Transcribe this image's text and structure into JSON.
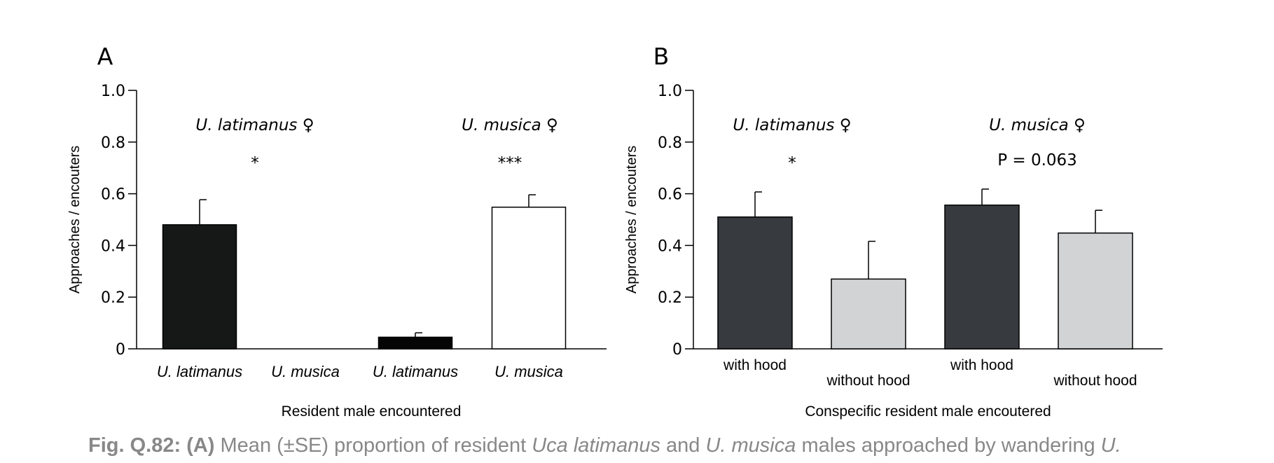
{
  "chart_data": [
    {
      "type": "bar",
      "panel_label": "A",
      "ylabel": "Approaches / encouters",
      "xlabel": "Resident male encountered",
      "ylim": [
        0,
        1.0
      ],
      "yticks": [
        "0",
        "0.2",
        "0.4",
        "0.6",
        "0.8",
        "1.0"
      ],
      "ytick_values": [
        0,
        0.2,
        0.4,
        0.6,
        0.8,
        1.0
      ],
      "categories": [
        "U. latimanus",
        "U. musica",
        "U. latimanus",
        "U. musica"
      ],
      "values": [
        0.48,
        0,
        0.045,
        0.548
      ],
      "se": [
        0.097,
        0,
        0.017,
        0.048
      ],
      "colors": [
        "#161818",
        "#ffffff",
        "#050505",
        "#ffffff"
      ],
      "groups": [
        {
          "label": "U. latimanus ♀",
          "annotation": "*"
        },
        {
          "label": "U. musica ♀",
          "annotation": "***"
        }
      ]
    },
    {
      "type": "bar",
      "panel_label": "B",
      "ylabel": "Approaches / encouters",
      "xlabel": "Conspecific resident male encoutered",
      "ylim": [
        0,
        1.0
      ],
      "yticks": [
        "0",
        "0.2",
        "0.4",
        "0.6",
        "0.8",
        "1.0"
      ],
      "ytick_values": [
        0,
        0.2,
        0.4,
        0.6,
        0.8,
        1.0
      ],
      "categories": [
        "with hood",
        "without hood",
        "with hood",
        "without hood"
      ],
      "values": [
        0.51,
        0.27,
        0.556,
        0.448
      ],
      "se": [
        0.097,
        0.146,
        0.062,
        0.088
      ],
      "colors": [
        "#373a3e",
        "#d1d3d5",
        "#373a3e",
        "#d1d3d5"
      ],
      "groups": [
        {
          "label": "U. latimanus ♀",
          "annotation": "*"
        },
        {
          "label": "U. musica ♀",
          "annotation": "P = 0.063"
        }
      ]
    }
  ],
  "caption": {
    "fig": "Fig. Q.82:",
    "part": "(A)",
    "t1": " Mean (±SE) proportion of resident ",
    "i1": "Uca latimanus",
    "t2": " and ",
    "i2": "U. musica",
    "t3": " males approached by wandering ",
    "i3": "U."
  }
}
